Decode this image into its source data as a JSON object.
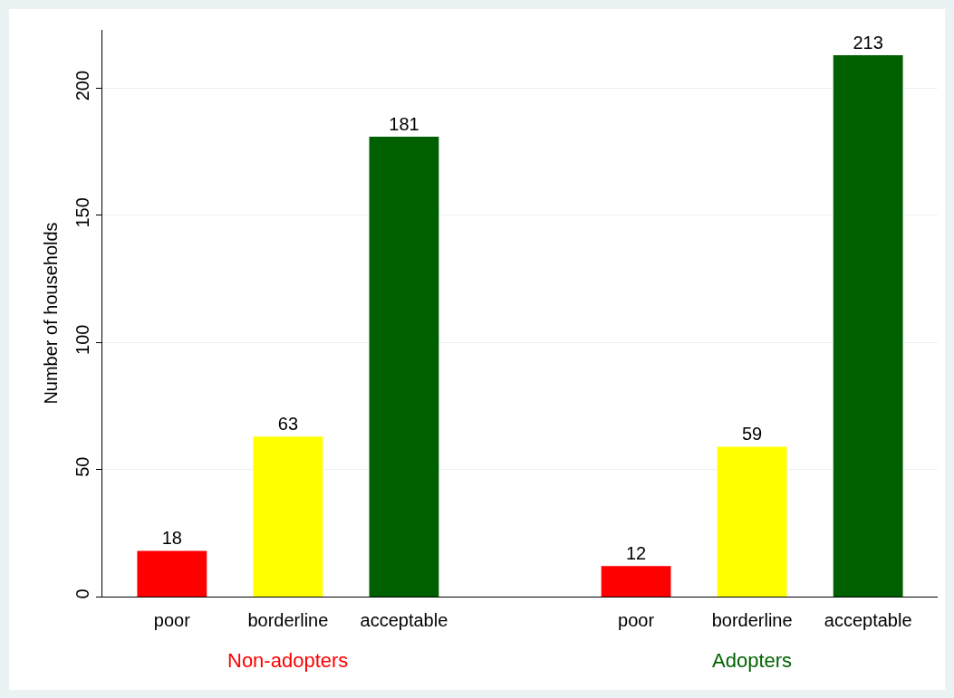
{
  "chart_data": {
    "type": "bar",
    "ylabel": "Number of households",
    "categories": [
      "poor",
      "borderline",
      "acceptable",
      null,
      "poor",
      "borderline",
      "acceptable"
    ],
    "values": [
      18,
      63,
      181,
      null,
      12,
      59,
      213
    ],
    "colors": [
      "#ff0000",
      "#ffff00",
      "#005f00",
      null,
      "#ff0000",
      "#ffff00",
      "#005f00"
    ],
    "ylim": [
      0,
      223
    ],
    "yticks": [
      0,
      50,
      100,
      150,
      200
    ],
    "grid": "y",
    "data_labels": true,
    "legend": false,
    "annotations": [
      "Non-adopters",
      "Adopters"
    ]
  }
}
